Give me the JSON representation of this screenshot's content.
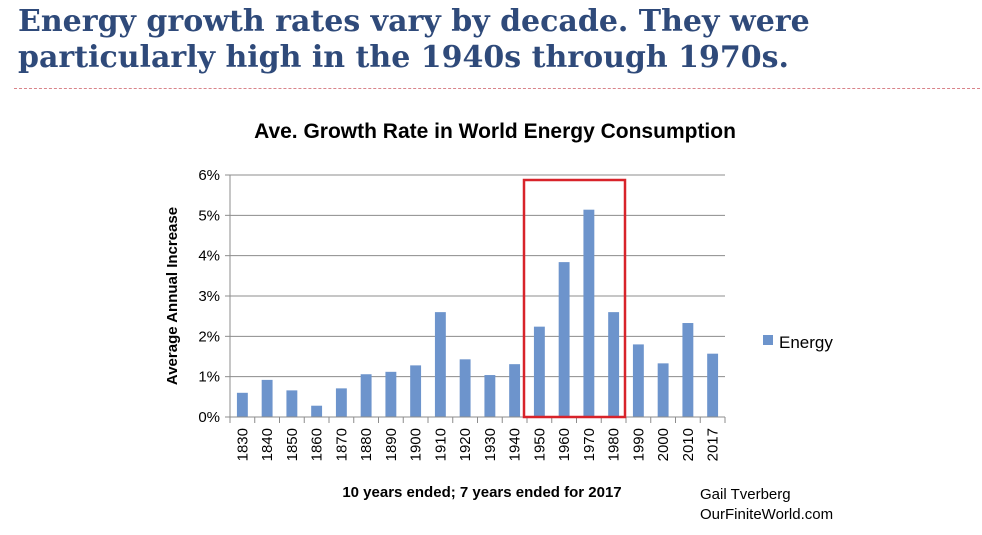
{
  "slide": {
    "title": "Energy growth rates vary by decade. They were particularly high in the 1940s through 1970s.",
    "credit_line1": "Gail Tverberg",
    "credit_line2": "OurFiniteWorld.com"
  },
  "chart_data": {
    "type": "bar",
    "title": "Ave. Growth Rate in World Energy Consumption",
    "xlabel": "10 years ended; 7 years ended for 2017",
    "ylabel": "Average Annual Increase",
    "categories": [
      "1830",
      "1840",
      "1850",
      "1860",
      "1870",
      "1880",
      "1890",
      "1900",
      "1910",
      "1920",
      "1930",
      "1940",
      "1950",
      "1960",
      "1970",
      "1980",
      "1990",
      "2000",
      "2010",
      "2017"
    ],
    "series": [
      {
        "name": "Energy",
        "values": [
          0.6,
          0.92,
          0.66,
          0.28,
          0.71,
          1.06,
          1.12,
          1.28,
          2.6,
          1.43,
          1.04,
          1.31,
          2.24,
          3.84,
          5.14,
          2.6,
          1.8,
          1.33,
          2.33,
          1.57
        ],
        "color": "#6d94cc"
      }
    ],
    "ylim": [
      0,
      6
    ],
    "yticks": [
      "0%",
      "1%",
      "2%",
      "3%",
      "4%",
      "5%",
      "6%"
    ],
    "grid": true,
    "legend": "right",
    "highlight": {
      "from": "1950",
      "to": "1980",
      "color": "#d8232a"
    }
  }
}
